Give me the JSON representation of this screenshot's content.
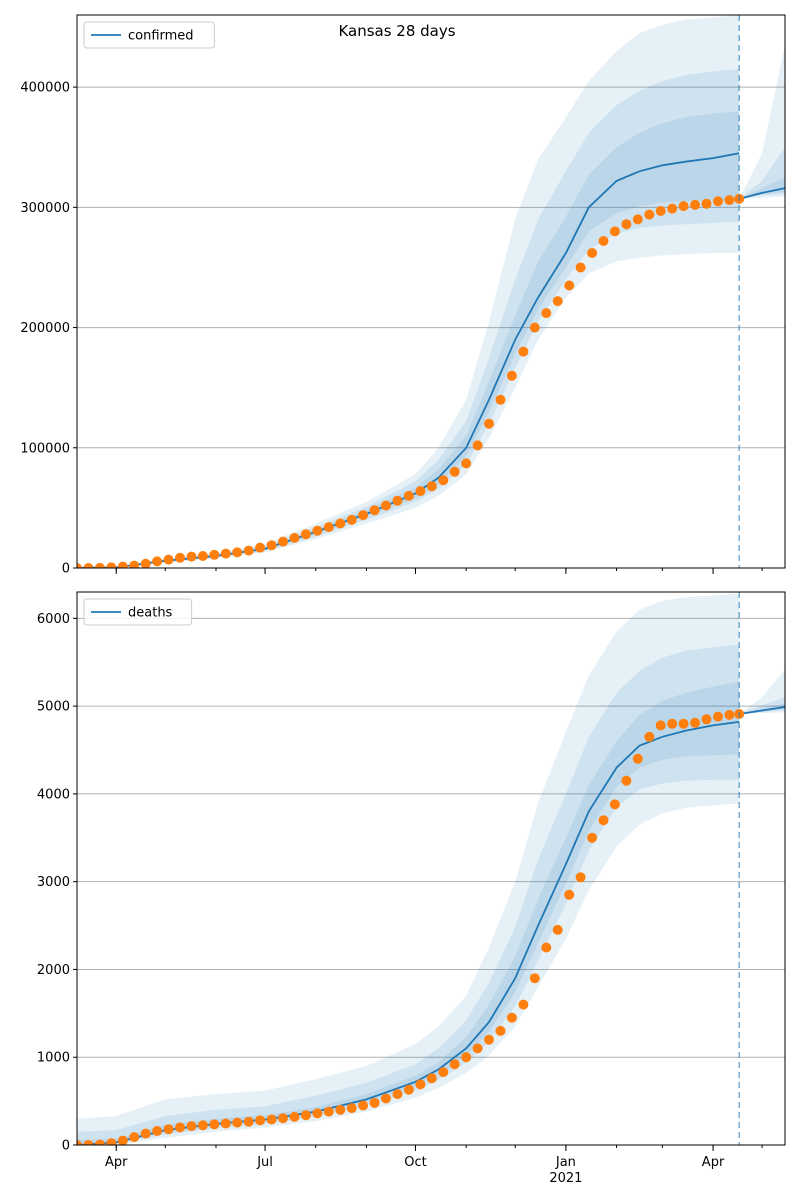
{
  "title": "Kansas 28 days",
  "colors": {
    "model": "#1f77b4",
    "observed": "#ff7f0e",
    "band": "#1f77b4",
    "grid": "#b0b0b0"
  },
  "x_axis": {
    "ticks": [
      {
        "date": "2020-04-01",
        "label": "Apr"
      },
      {
        "date": "2020-07-01",
        "label": "Jul"
      },
      {
        "date": "2020-10-01",
        "label": "Oct"
      },
      {
        "date": "2021-01-01",
        "label": "Jan"
      },
      {
        "date": "2021-04-01",
        "label": "Apr"
      }
    ],
    "year_label": "2021",
    "year_label_date": "2021-01-01"
  },
  "chart_data": [
    {
      "type": "line",
      "title": "Kansas 28 days",
      "legend": "confirmed",
      "legend_position": "top-left",
      "grid": true,
      "xlim": [
        "2020-03-08",
        "2021-05-15"
      ],
      "ylim": [
        0,
        460000
      ],
      "yticks": [
        0,
        100000,
        200000,
        300000,
        400000
      ],
      "ytick_labels": [
        "0",
        "100000",
        "200000",
        "300000",
        "400000"
      ],
      "forecast_start": "2021-04-17",
      "model_fit": {
        "name": "confirmed",
        "x": [
          "2020-03-08",
          "2020-04-01",
          "2020-05-01",
          "2020-06-01",
          "2020-07-01",
          "2020-08-01",
          "2020-09-01",
          "2020-10-01",
          "2020-10-15",
          "2020-11-01",
          "2020-11-15",
          "2020-12-01",
          "2020-12-15",
          "2021-01-01",
          "2021-01-15",
          "2021-02-01",
          "2021-02-15",
          "2021-03-01",
          "2021-03-15",
          "2021-04-01",
          "2021-04-17"
        ],
        "y": [
          0,
          500,
          6000,
          10000,
          16000,
          30000,
          45000,
          62000,
          75000,
          100000,
          140000,
          190000,
          225000,
          262000,
          300000,
          322000,
          330000,
          335000,
          338000,
          341000,
          345000
        ]
      },
      "forecast": {
        "x": [
          "2021-04-17",
          "2021-05-01",
          "2021-05-15"
        ],
        "y": [
          307000,
          312000,
          316000
        ]
      },
      "bands": [
        {
          "x": [
            "2020-03-08",
            "2020-04-01",
            "2020-05-01",
            "2020-06-01",
            "2020-07-01",
            "2020-08-01",
            "2020-09-01",
            "2020-10-01",
            "2020-10-15",
            "2020-11-01",
            "2020-11-15",
            "2020-12-01",
            "2020-12-15",
            "2021-01-01",
            "2021-01-15",
            "2021-02-01",
            "2021-02-15",
            "2021-03-01",
            "2021-03-15",
            "2021-04-01",
            "2021-04-17"
          ],
          "lower": [
            0,
            200,
            4500,
            8000,
            13000,
            24000,
            37000,
            50000,
            60000,
            78000,
            108000,
            150000,
            190000,
            225000,
            245000,
            255000,
            258000,
            260000,
            261000,
            262000,
            262000
          ],
          "upper": [
            0,
            900,
            8000,
            12500,
            20000,
            37000,
            55000,
            78000,
            100000,
            140000,
            205000,
            290000,
            340000,
            375000,
            405000,
            430000,
            445000,
            452000,
            456000,
            458000,
            460000
          ]
        },
        {
          "x": [
            "2020-03-08",
            "2020-04-01",
            "2020-05-01",
            "2020-06-01",
            "2020-07-01",
            "2020-08-01",
            "2020-09-01",
            "2020-10-01",
            "2020-10-15",
            "2020-11-01",
            "2020-11-15",
            "2020-12-01",
            "2020-12-15",
            "2021-01-01",
            "2021-01-15",
            "2021-02-01",
            "2021-02-15",
            "2021-03-01",
            "2021-03-15",
            "2021-04-01",
            "2021-04-17"
          ],
          "lower": [
            0,
            300,
            5000,
            8800,
            14000,
            26000,
            40000,
            55000,
            66000,
            86000,
            120000,
            166000,
            205000,
            240000,
            265000,
            278000,
            283000,
            285000,
            286000,
            287000,
            288000
          ],
          "upper": [
            0,
            700,
            7200,
            11500,
            18500,
            34000,
            51000,
            72000,
            90000,
            122000,
            175000,
            240000,
            290000,
            330000,
            362000,
            385000,
            397000,
            405000,
            410000,
            413000,
            415000
          ]
        },
        {
          "x": [
            "2020-03-08",
            "2020-04-01",
            "2020-05-01",
            "2020-06-01",
            "2020-07-01",
            "2020-08-01",
            "2020-09-01",
            "2020-10-01",
            "2020-10-15",
            "2020-11-01",
            "2020-11-15",
            "2020-12-01",
            "2020-12-15",
            "2021-01-01",
            "2021-01-15",
            "2021-02-01",
            "2021-02-15",
            "2021-03-01",
            "2021-03-15",
            "2021-04-01",
            "2021-04-17"
          ],
          "lower": [
            0,
            400,
            5500,
            9400,
            15000,
            28000,
            43000,
            58000,
            70000,
            93000,
            130000,
            178000,
            215000,
            250000,
            280000,
            295000,
            301000,
            304000,
            305000,
            306000,
            306000
          ],
          "upper": [
            0,
            600,
            6500,
            10800,
            17200,
            32000,
            48000,
            67000,
            82000,
            110000,
            155000,
            210000,
            255000,
            292000,
            327000,
            350000,
            362000,
            370000,
            375000,
            378000,
            380000
          ]
        }
      ],
      "forecast_bands": [
        {
          "x": [
            "2021-04-17",
            "2021-05-01",
            "2021-05-15"
          ],
          "lower": [
            307000,
            308000,
            309000
          ],
          "upper": [
            307000,
            345000,
            435000
          ]
        },
        {
          "x": [
            "2021-04-17",
            "2021-05-01",
            "2021-05-15"
          ],
          "lower": [
            307000,
            310000,
            311000
          ],
          "upper": [
            307000,
            322000,
            350000
          ]
        },
        {
          "x": [
            "2021-04-17",
            "2021-05-01",
            "2021-05-15"
          ],
          "lower": [
            307000,
            311000,
            313000
          ],
          "upper": [
            307000,
            316000,
            325000
          ]
        }
      ],
      "observed": {
        "x": [
          "2020-03-08",
          "2020-03-15",
          "2020-03-22",
          "2020-03-29",
          "2020-04-05",
          "2020-04-12",
          "2020-04-19",
          "2020-04-26",
          "2020-05-03",
          "2020-05-10",
          "2020-05-17",
          "2020-05-24",
          "2020-05-31",
          "2020-06-07",
          "2020-06-14",
          "2020-06-21",
          "2020-06-28",
          "2020-07-05",
          "2020-07-12",
          "2020-07-19",
          "2020-07-26",
          "2020-08-02",
          "2020-08-09",
          "2020-08-16",
          "2020-08-23",
          "2020-08-30",
          "2020-09-06",
          "2020-09-13",
          "2020-09-20",
          "2020-09-27",
          "2020-10-04",
          "2020-10-11",
          "2020-10-18",
          "2020-10-25",
          "2020-11-01",
          "2020-11-08",
          "2020-11-15",
          "2020-11-22",
          "2020-11-29",
          "2020-12-06",
          "2020-12-13",
          "2020-12-20",
          "2020-12-27",
          "2021-01-03",
          "2021-01-10",
          "2021-01-17",
          "2021-01-24",
          "2021-01-31",
          "2021-02-07",
          "2021-02-14",
          "2021-02-21",
          "2021-02-28",
          "2021-03-07",
          "2021-03-14",
          "2021-03-21",
          "2021-03-28",
          "2021-04-04",
          "2021-04-11",
          "2021-04-17"
        ],
        "y": [
          0,
          0,
          100,
          500,
          1200,
          2000,
          3500,
          5500,
          7000,
          8500,
          9500,
          10000,
          11000,
          12000,
          13000,
          14500,
          17000,
          19000,
          22000,
          25000,
          28000,
          31000,
          34000,
          37000,
          40000,
          44000,
          48000,
          52000,
          56000,
          60000,
          64000,
          68000,
          73000,
          80000,
          87000,
          102000,
          120000,
          140000,
          160000,
          180000,
          200000,
          212000,
          222000,
          235000,
          250000,
          262000,
          272000,
          280000,
          286000,
          290000,
          294000,
          297000,
          299000,
          301000,
          302000,
          303000,
          305000,
          306000,
          307000
        ]
      }
    },
    {
      "type": "line",
      "legend": "deaths",
      "legend_position": "top-left",
      "grid": true,
      "xlim": [
        "2020-03-08",
        "2021-05-15"
      ],
      "ylim": [
        0,
        6300
      ],
      "yticks": [
        0,
        1000,
        2000,
        3000,
        4000,
        5000,
        6000
      ],
      "ytick_labels": [
        "0",
        "1000",
        "2000",
        "3000",
        "4000",
        "5000",
        "6000"
      ],
      "forecast_start": "2021-04-17",
      "model_fit": {
        "name": "deaths",
        "x": [
          "2020-03-08",
          "2020-04-01",
          "2020-05-01",
          "2020-06-01",
          "2020-07-01",
          "2020-08-01",
          "2020-09-01",
          "2020-10-01",
          "2020-10-15",
          "2020-11-01",
          "2020-11-15",
          "2020-12-01",
          "2020-12-15",
          "2021-01-01",
          "2021-01-15",
          "2021-02-01",
          "2021-02-15",
          "2021-03-01",
          "2021-03-15",
          "2021-04-01",
          "2021-04-17"
        ],
        "y": [
          0,
          30,
          170,
          240,
          290,
          380,
          520,
          720,
          860,
          1100,
          1400,
          1900,
          2500,
          3200,
          3800,
          4300,
          4550,
          4650,
          4720,
          4780,
          4820
        ]
      },
      "forecast": {
        "x": [
          "2021-04-17",
          "2021-05-01",
          "2021-05-15"
        ],
        "y": [
          4910,
          4950,
          4990
        ]
      },
      "bands": [
        {
          "x": [
            "2020-03-08",
            "2020-04-01",
            "2020-05-01",
            "2020-06-01",
            "2020-07-01",
            "2020-08-01",
            "2020-09-01",
            "2020-10-01",
            "2020-10-15",
            "2020-11-01",
            "2020-11-15",
            "2020-12-01",
            "2020-12-15",
            "2021-01-01",
            "2021-01-15",
            "2021-02-01",
            "2021-02-15",
            "2021-03-01",
            "2021-03-15",
            "2021-04-01",
            "2021-04-17"
          ],
          "lower": [
            0,
            0,
            80,
            150,
            200,
            270,
            380,
            540,
            650,
            820,
            1020,
            1350,
            1800,
            2350,
            2900,
            3400,
            3650,
            3780,
            3840,
            3870,
            3890
          ],
          "upper": [
            300,
            330,
            520,
            580,
            620,
            750,
            900,
            1150,
            1350,
            1700,
            2250,
            3000,
            3900,
            4700,
            5350,
            5850,
            6100,
            6200,
            6240,
            6260,
            6280
          ]
        },
        {
          "x": [
            "2020-03-08",
            "2020-04-01",
            "2020-05-01",
            "2020-06-01",
            "2020-07-01",
            "2020-08-01",
            "2020-09-01",
            "2020-10-01",
            "2020-10-15",
            "2020-11-01",
            "2020-11-15",
            "2020-12-01",
            "2020-12-15",
            "2021-01-01",
            "2021-01-15",
            "2021-02-01",
            "2021-02-15",
            "2021-03-01",
            "2021-03-15",
            "2021-04-01",
            "2021-04-17"
          ],
          "lower": [
            0,
            10,
            120,
            190,
            240,
            320,
            450,
            620,
            740,
            940,
            1180,
            1580,
            2100,
            2750,
            3350,
            3850,
            4050,
            4120,
            4150,
            4160,
            4160
          ],
          "upper": [
            150,
            170,
            330,
            400,
            440,
            560,
            710,
            920,
            1100,
            1420,
            1850,
            2480,
            3250,
            4000,
            4650,
            5150,
            5400,
            5550,
            5630,
            5670,
            5700
          ]
        },
        {
          "x": [
            "2020-03-08",
            "2020-04-01",
            "2020-05-01",
            "2020-06-01",
            "2020-07-01",
            "2020-08-01",
            "2020-09-01",
            "2020-10-01",
            "2020-10-15",
            "2020-11-01",
            "2020-11-15",
            "2020-12-01",
            "2020-12-15",
            "2021-01-01",
            "2021-01-15",
            "2021-02-01",
            "2021-02-15",
            "2021-03-01",
            "2021-03-15",
            "2021-04-01",
            "2021-04-17"
          ],
          "lower": [
            0,
            20,
            145,
            215,
            265,
            350,
            485,
            670,
            800,
            1020,
            1290,
            1740,
            2300,
            2980,
            3580,
            4080,
            4300,
            4390,
            4430,
            4440,
            4450
          ],
          "upper": [
            60,
            70,
            230,
            300,
            340,
            430,
            580,
            790,
            940,
            1230,
            1600,
            2150,
            2800,
            3500,
            4100,
            4600,
            4900,
            5060,
            5150,
            5220,
            5280
          ]
        }
      ],
      "forecast_bands": [
        {
          "x": [
            "2021-04-17",
            "2021-05-01",
            "2021-05-15"
          ],
          "lower": [
            4910,
            4920,
            4930
          ],
          "upper": [
            4910,
            5100,
            5420
          ]
        },
        {
          "x": [
            "2021-04-17",
            "2021-05-01",
            "2021-05-15"
          ],
          "lower": [
            4910,
            4930,
            4950
          ],
          "upper": [
            4910,
            5010,
            5100
          ]
        },
        {
          "x": [
            "2021-04-17",
            "2021-05-01",
            "2021-05-15"
          ],
          "lower": [
            4910,
            4940,
            4970
          ],
          "upper": [
            4910,
            4975,
            5030
          ]
        }
      ],
      "observed": {
        "x": [
          "2020-03-08",
          "2020-03-15",
          "2020-03-22",
          "2020-03-29",
          "2020-04-05",
          "2020-04-12",
          "2020-04-19",
          "2020-04-26",
          "2020-05-03",
          "2020-05-10",
          "2020-05-17",
          "2020-05-24",
          "2020-05-31",
          "2020-06-07",
          "2020-06-14",
          "2020-06-21",
          "2020-06-28",
          "2020-07-05",
          "2020-07-12",
          "2020-07-19",
          "2020-07-26",
          "2020-08-02",
          "2020-08-09",
          "2020-08-16",
          "2020-08-23",
          "2020-08-30",
          "2020-09-06",
          "2020-09-13",
          "2020-09-20",
          "2020-09-27",
          "2020-10-04",
          "2020-10-11",
          "2020-10-18",
          "2020-10-25",
          "2020-11-01",
          "2020-11-08",
          "2020-11-15",
          "2020-11-22",
          "2020-11-29",
          "2020-12-06",
          "2020-12-13",
          "2020-12-20",
          "2020-12-27",
          "2021-01-03",
          "2021-01-10",
          "2021-01-17",
          "2021-01-24",
          "2021-01-31",
          "2021-02-07",
          "2021-02-14",
          "2021-02-21",
          "2021-02-28",
          "2021-03-07",
          "2021-03-14",
          "2021-03-21",
          "2021-03-28",
          "2021-04-04",
          "2021-04-11",
          "2021-04-17"
        ],
        "y": [
          0,
          0,
          5,
          20,
          50,
          90,
          130,
          160,
          180,
          200,
          215,
          225,
          235,
          245,
          255,
          265,
          280,
          290,
          305,
          320,
          340,
          360,
          380,
          400,
          420,
          450,
          480,
          530,
          580,
          630,
          690,
          760,
          830,
          920,
          1000,
          1100,
          1200,
          1300,
          1450,
          1600,
          1900,
          2250,
          2450,
          2850,
          3050,
          3500,
          3700,
          3880,
          4150,
          4400,
          4650,
          4780,
          4800,
          4800,
          4810,
          4850,
          4880,
          4900,
          4910
        ]
      }
    }
  ]
}
